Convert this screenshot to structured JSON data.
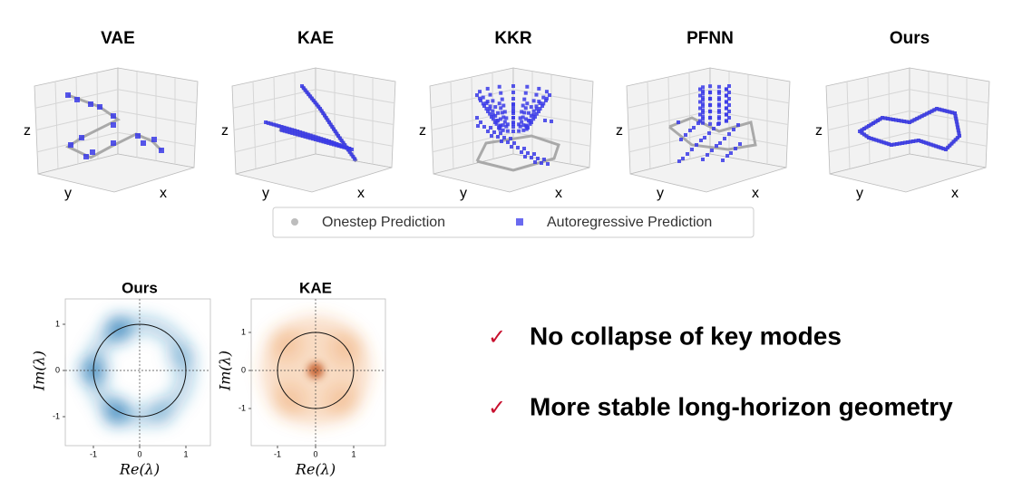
{
  "top_panels": [
    {
      "title": "VAE",
      "axis_labels": {
        "x": "x",
        "y": "y",
        "z": "z"
      }
    },
    {
      "title": "KAE",
      "axis_labels": {
        "x": "x",
        "y": "y",
        "z": "z"
      }
    },
    {
      "title": "KKR",
      "axis_labels": {
        "x": "x",
        "y": "y",
        "z": "z"
      }
    },
    {
      "title": "PFNN",
      "axis_labels": {
        "x": "x",
        "y": "y",
        "z": "z"
      }
    },
    {
      "title": "Ours",
      "axis_labels": {
        "x": "x",
        "y": "y",
        "z": "z"
      }
    }
  ],
  "legend": {
    "items": [
      "Onestep Prediction",
      "Autoregressive Prediction"
    ]
  },
  "bottom_panels": [
    {
      "title": "Ours",
      "x_label": "Re(λ)",
      "y_label": "Im(λ)",
      "x_ticks": [
        -1,
        0,
        1
      ],
      "y_ticks": [
        1,
        0,
        -1
      ]
    },
    {
      "title": "KAE",
      "x_label": "Re(λ)",
      "y_label": "Im(λ)",
      "x_ticks": [
        -1,
        0,
        1
      ],
      "y_ticks": [
        1,
        0,
        -1
      ]
    }
  ],
  "bullets": [
    {
      "mark": "✓",
      "text": "No collapse of key modes"
    },
    {
      "mark": "✓",
      "text": "More stable long-horizon geometry"
    }
  ]
}
